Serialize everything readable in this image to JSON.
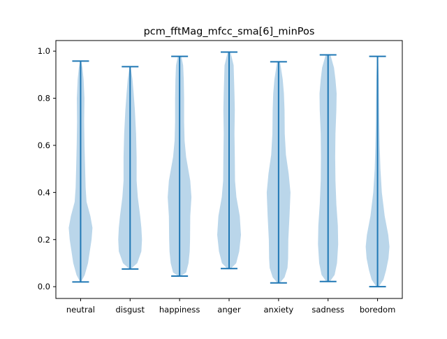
{
  "chart_data": {
    "type": "violin",
    "title": "pcm_fftMag_mfcc_sma[6]_minPos",
    "xlabel": "",
    "ylabel": "",
    "ylim": [
      -0.05,
      1.045
    ],
    "yticks": [
      "0.0",
      "0.2",
      "0.4",
      "0.6",
      "0.8",
      "1.0"
    ],
    "grid": false,
    "categories": [
      "neutral",
      "disgust",
      "happiness",
      "anger",
      "anxiety",
      "sadness",
      "boredom"
    ],
    "colors": {
      "body": "#bad6ea",
      "lines": "#1f77b4"
    },
    "violins": [
      {
        "name": "neutral",
        "min": 0.02,
        "max": 0.958,
        "profile": [
          [
            0.02,
            0.04
          ],
          [
            0.05,
            0.35
          ],
          [
            0.1,
            0.62
          ],
          [
            0.2,
            0.92
          ],
          [
            0.25,
            1.0
          ],
          [
            0.3,
            0.82
          ],
          [
            0.36,
            0.5
          ],
          [
            0.42,
            0.42
          ],
          [
            0.5,
            0.38
          ],
          [
            0.6,
            0.33
          ],
          [
            0.7,
            0.3
          ],
          [
            0.8,
            0.32
          ],
          [
            0.88,
            0.25
          ],
          [
            0.93,
            0.15
          ],
          [
            0.958,
            0.04
          ]
        ]
      },
      {
        "name": "disgust",
        "min": 0.075,
        "max": 0.934,
        "profile": [
          [
            0.075,
            0.05
          ],
          [
            0.1,
            0.6
          ],
          [
            0.15,
            0.95
          ],
          [
            0.2,
            1.0
          ],
          [
            0.25,
            0.95
          ],
          [
            0.3,
            0.85
          ],
          [
            0.38,
            0.65
          ],
          [
            0.45,
            0.55
          ],
          [
            0.55,
            0.55
          ],
          [
            0.65,
            0.5
          ],
          [
            0.75,
            0.4
          ],
          [
            0.82,
            0.3
          ],
          [
            0.88,
            0.2
          ],
          [
            0.934,
            0.04
          ]
        ]
      },
      {
        "name": "happiness",
        "min": 0.045,
        "max": 0.978,
        "profile": [
          [
            0.045,
            0.1
          ],
          [
            0.06,
            0.55
          ],
          [
            0.1,
            0.75
          ],
          [
            0.15,
            0.85
          ],
          [
            0.2,
            0.88
          ],
          [
            0.3,
            0.9
          ],
          [
            0.38,
            1.0
          ],
          [
            0.45,
            0.9
          ],
          [
            0.55,
            0.55
          ],
          [
            0.62,
            0.42
          ],
          [
            0.7,
            0.38
          ],
          [
            0.8,
            0.38
          ],
          [
            0.88,
            0.35
          ],
          [
            0.94,
            0.3
          ],
          [
            0.978,
            0.15
          ]
        ]
      },
      {
        "name": "anger",
        "min": 0.077,
        "max": 0.996,
        "profile": [
          [
            0.077,
            0.15
          ],
          [
            0.1,
            0.6
          ],
          [
            0.15,
            0.85
          ],
          [
            0.22,
            1.0
          ],
          [
            0.3,
            0.9
          ],
          [
            0.38,
            0.62
          ],
          [
            0.45,
            0.5
          ],
          [
            0.55,
            0.48
          ],
          [
            0.65,
            0.45
          ],
          [
            0.75,
            0.48
          ],
          [
            0.82,
            0.45
          ],
          [
            0.88,
            0.42
          ],
          [
            0.94,
            0.38
          ],
          [
            0.996,
            0.12
          ]
        ]
      },
      {
        "name": "anxiety",
        "min": 0.016,
        "max": 0.955,
        "profile": [
          [
            0.016,
            0.1
          ],
          [
            0.04,
            0.5
          ],
          [
            0.08,
            0.75
          ],
          [
            0.12,
            0.8
          ],
          [
            0.2,
            0.82
          ],
          [
            0.3,
            0.92
          ],
          [
            0.4,
            1.0
          ],
          [
            0.48,
            0.85
          ],
          [
            0.56,
            0.62
          ],
          [
            0.65,
            0.52
          ],
          [
            0.75,
            0.5
          ],
          [
            0.82,
            0.45
          ],
          [
            0.88,
            0.35
          ],
          [
            0.955,
            0.12
          ]
        ]
      },
      {
        "name": "sadness",
        "min": 0.022,
        "max": 0.984,
        "profile": [
          [
            0.022,
            0.15
          ],
          [
            0.05,
            0.55
          ],
          [
            0.1,
            0.75
          ],
          [
            0.18,
            0.85
          ],
          [
            0.26,
            0.82
          ],
          [
            0.35,
            0.7
          ],
          [
            0.45,
            0.62
          ],
          [
            0.55,
            0.6
          ],
          [
            0.65,
            0.62
          ],
          [
            0.75,
            0.7
          ],
          [
            0.82,
            0.72
          ],
          [
            0.88,
            0.62
          ],
          [
            0.93,
            0.5
          ],
          [
            0.984,
            0.2
          ]
        ]
      },
      {
        "name": "boredom",
        "min": 0.0,
        "max": 0.978,
        "profile": [
          [
            0.0,
            0.1
          ],
          [
            0.03,
            0.5
          ],
          [
            0.07,
            0.72
          ],
          [
            0.12,
            0.92
          ],
          [
            0.17,
            1.0
          ],
          [
            0.22,
            0.9
          ],
          [
            0.3,
            0.6
          ],
          [
            0.4,
            0.36
          ],
          [
            0.5,
            0.24
          ],
          [
            0.6,
            0.18
          ],
          [
            0.7,
            0.14
          ],
          [
            0.8,
            0.12
          ],
          [
            0.88,
            0.1
          ],
          [
            0.978,
            0.04
          ]
        ]
      }
    ]
  }
}
